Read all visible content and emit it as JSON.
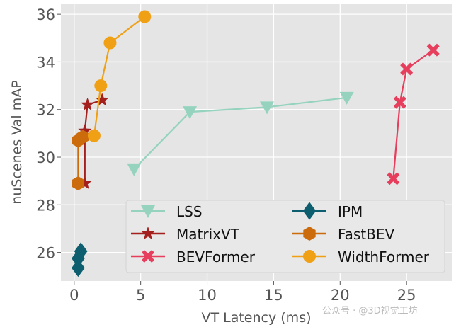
{
  "chart_data": {
    "type": "line",
    "title": "",
    "xlabel": "VT Latency (ms)",
    "ylabel": "nuScenes Val mAP",
    "xlim": [
      -1.0,
      28.4
    ],
    "ylim": [
      24.8,
      36.45
    ],
    "xticks": [
      0,
      5,
      10,
      15,
      20,
      25
    ],
    "yticks": [
      26,
      28,
      30,
      32,
      34,
      36
    ],
    "grid": true,
    "legend_position": "bottom-right",
    "series": [
      {
        "name": "LSS",
        "color": "#95d3bf",
        "marker": "triangle-down",
        "x": [
          4.5,
          8.7,
          14.5,
          20.5
        ],
        "y": [
          29.5,
          31.9,
          32.1,
          32.5
        ]
      },
      {
        "name": "MatrixVT",
        "color": "#a3201e",
        "marker": "star",
        "x": [
          0.8,
          0.8,
          1.0,
          2.1
        ],
        "y": [
          28.9,
          31.1,
          32.2,
          32.4
        ]
      },
      {
        "name": "BEVFormer",
        "color": "#e63e5c",
        "marker": "x-filled",
        "x": [
          24.0,
          24.5,
          25.0,
          27.0
        ],
        "y": [
          29.1,
          32.3,
          33.7,
          34.5
        ]
      },
      {
        "name": "IPM",
        "color": "#0d5e6e",
        "marker": "diamond",
        "x": [
          0.3,
          0.3,
          0.5
        ],
        "y": [
          25.35,
          25.75,
          26.05
        ]
      },
      {
        "name": "FastBEV",
        "color": "#cc6b0c",
        "marker": "hexagon",
        "x": [
          0.3,
          0.3,
          0.65
        ],
        "y": [
          28.9,
          30.7,
          30.85
        ]
      },
      {
        "name": "WidthFormer",
        "color": "#f0a015",
        "marker": "circle",
        "x": [
          1.5,
          2.0,
          2.7,
          5.3
        ],
        "y": [
          30.9,
          33.0,
          34.8,
          35.9
        ]
      }
    ]
  },
  "watermark": "公众号 · @3D视觉工坊"
}
